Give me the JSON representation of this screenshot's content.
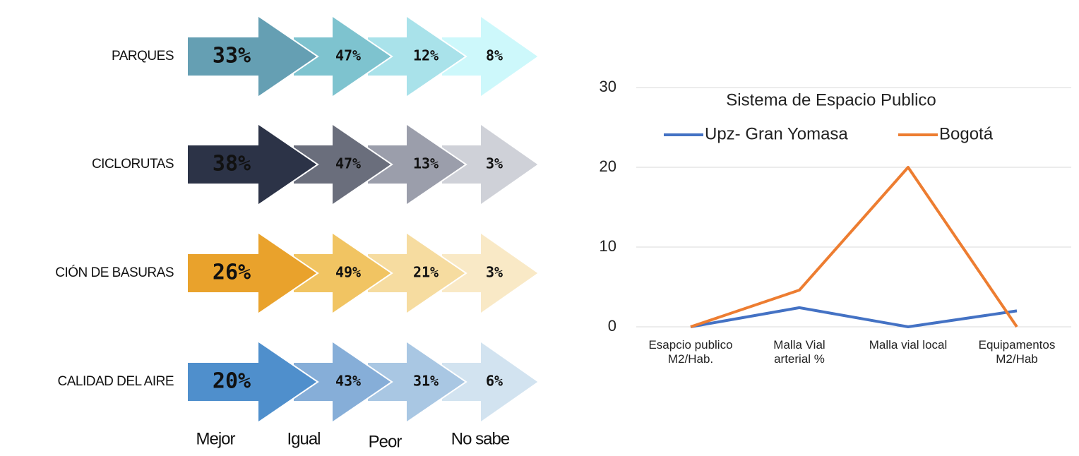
{
  "chart_data": [
    {
      "type": "arrows",
      "categories": [
        "Mejor",
        "Igual",
        "Peor",
        "No sabe"
      ],
      "series": [
        {
          "name": "PARQUES",
          "colors": [
            "#659fb3",
            "#7ec3cf",
            "#a9e2ea",
            "#cdf8fb"
          ],
          "values": [
            33,
            47,
            12,
            8
          ],
          "value_labels": [
            "33%",
            "47%",
            "12%",
            "8%"
          ]
        },
        {
          "name": "CICLORUTAS",
          "colors": [
            "#2c3347",
            "#6a6e7c",
            "#9b9eab",
            "#cfd1d8"
          ],
          "values": [
            38,
            47,
            13,
            3
          ],
          "value_labels": [
            "38%",
            "47%",
            "13%",
            "3%"
          ]
        },
        {
          "name": "CIÓN DE BASURAS",
          "colors": [
            "#e9a22c",
            "#f1c462",
            "#f6dca0",
            "#f9e9c6"
          ],
          "values": [
            26,
            49,
            21,
            3
          ],
          "value_labels": [
            "26%",
            "49%",
            "21%",
            "3%"
          ]
        },
        {
          "name": "CALIDAD DEL AIRE",
          "colors": [
            "#4f8fcc",
            "#86aed8",
            "#a9c7e3",
            "#d2e3f0"
          ],
          "values": [
            20,
            43,
            31,
            6
          ],
          "value_labels": [
            "20%",
            "43%",
            "31%",
            "6%"
          ]
        }
      ]
    },
    {
      "type": "line",
      "title": "Sistema de Espacio Publico",
      "categories": [
        "Esapcio publico\nM2/Hab.",
        "Malla Vial\narterial %",
        "Malla vial local",
        "Equipamentos\nM2/Hab"
      ],
      "series": [
        {
          "name": "Upz- Gran Yomasa",
          "color": "#4472c4",
          "values": [
            0,
            2.4,
            0,
            2
          ]
        },
        {
          "name": "Bogotá",
          "color": "#ed7d31",
          "values": [
            0,
            4.6,
            20,
            0
          ]
        }
      ],
      "ylim": [
        0,
        30
      ],
      "yticks": [
        0,
        10,
        20,
        30
      ],
      "grid": true,
      "legend": "top"
    }
  ]
}
